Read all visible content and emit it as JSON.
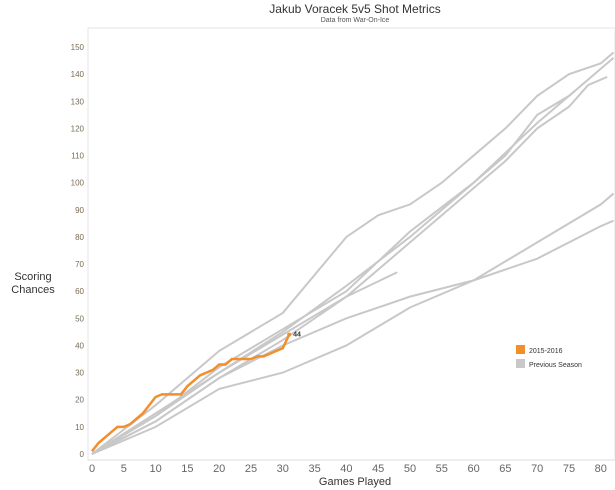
{
  "chart_data": {
    "type": "line",
    "title": "Jakub Voracek 5v5 Shot Metrics",
    "subtitle": "Data from War-On-Ice",
    "xlabel": "Games Played",
    "ylabel": "Scoring Chances",
    "xlim": [
      0,
      82
    ],
    "ylim": [
      0,
      155
    ],
    "xticks": [
      0,
      5,
      10,
      15,
      20,
      25,
      30,
      35,
      40,
      45,
      50,
      55,
      60,
      65,
      70,
      75,
      80
    ],
    "yticks": [
      0,
      10,
      20,
      30,
      40,
      50,
      60,
      70,
      80,
      90,
      100,
      110,
      120,
      130,
      140,
      150
    ],
    "grid": false,
    "legend_position": "right",
    "legend": [
      {
        "label": "2015-2016",
        "color": "#f28e2b"
      },
      {
        "label": "Previous Season",
        "color": "#c8c8c8"
      }
    ],
    "end_label": "44",
    "current": {
      "name": "2015-2016",
      "color": "#f28e2b",
      "x": [
        0,
        1,
        2,
        3,
        4,
        5,
        6,
        7,
        8,
        9,
        10,
        11,
        12,
        13,
        14,
        15,
        16,
        17,
        18,
        19,
        20,
        21,
        22,
        23,
        24,
        25,
        26,
        27,
        28,
        29,
        30,
        31
      ],
      "y": [
        1,
        4,
        6,
        8,
        10,
        10,
        11,
        13,
        15,
        18,
        21,
        22,
        22,
        22,
        22,
        25,
        27,
        29,
        30,
        31,
        33,
        33,
        35,
        35,
        35,
        35,
        36,
        36,
        37,
        38,
        39,
        44
      ]
    },
    "previous": [
      {
        "x": [
          0,
          10,
          20,
          30,
          40,
          45,
          50,
          55,
          60,
          65,
          70,
          75,
          80,
          82
        ],
        "y": [
          0,
          18,
          38,
          52,
          80,
          88,
          92,
          100,
          110,
          120,
          132,
          140,
          144,
          148
        ]
      },
      {
        "x": [
          0,
          10,
          20,
          30,
          40,
          50,
          55,
          60,
          65,
          70,
          75,
          80,
          82
        ],
        "y": [
          0,
          15,
          30,
          45,
          62,
          80,
          90,
          100,
          110,
          125,
          132,
          142,
          146
        ]
      },
      {
        "x": [
          0,
          10,
          20,
          30,
          40,
          50,
          60,
          65,
          70,
          75,
          78,
          81
        ],
        "y": [
          0,
          12,
          28,
          42,
          58,
          78,
          98,
          108,
          120,
          128,
          136,
          139
        ]
      },
      {
        "x": [
          0,
          10,
          20,
          30,
          40,
          50,
          60,
          70,
          76
        ],
        "y": [
          0,
          14,
          32,
          46,
          60,
          82,
          100,
          122,
          134
        ]
      },
      {
        "x": [
          0,
          10,
          20,
          30,
          40,
          48
        ],
        "y": [
          0,
          14,
          30,
          44,
          58,
          67
        ]
      },
      {
        "x": [
          0,
          10,
          20,
          30,
          40,
          50,
          60,
          70,
          80,
          82
        ],
        "y": [
          0,
          10,
          24,
          30,
          40,
          54,
          64,
          78,
          92,
          96
        ]
      },
      {
        "x": [
          0,
          10,
          20,
          30,
          40,
          50,
          60,
          70,
          80,
          82
        ],
        "y": [
          0,
          12,
          28,
          40,
          50,
          58,
          64,
          72,
          84,
          86
        ]
      }
    ]
  }
}
